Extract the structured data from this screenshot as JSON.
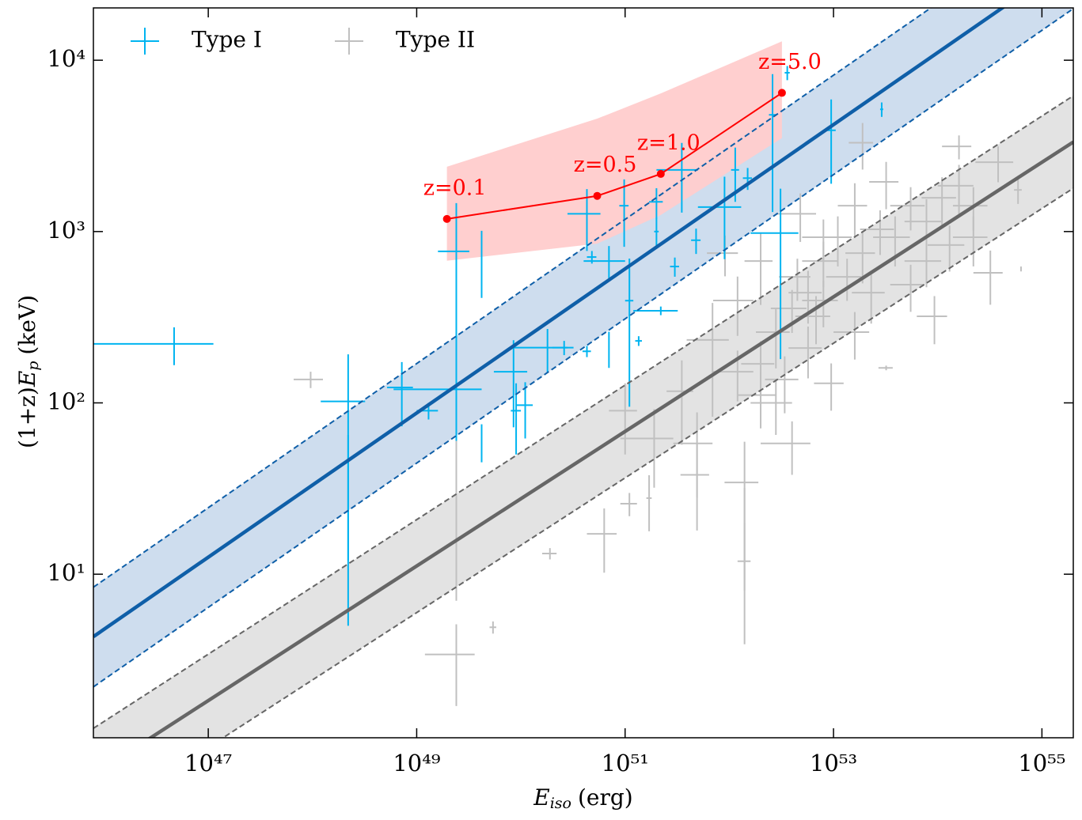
{
  "chart_data": {
    "type": "scatter",
    "xscale": "log",
    "yscale": "log",
    "xlabel": {
      "symbol": "E",
      "subscript": "iso",
      "unit": "(erg)"
    },
    "ylabel": {
      "prefix": "(1+z)",
      "symbol": "E",
      "subscript": "p",
      "unit": "(keV)"
    },
    "xlim": [
      7.9e+45,
      2e+55
    ],
    "ylim": [
      1.11,
      20200
    ],
    "xticks": [
      {
        "value": 1e+47,
        "label": "10⁴⁷"
      },
      {
        "value": 1e+49,
        "label": "10⁴⁹"
      },
      {
        "value": 1e+51,
        "label": "10⁵¹"
      },
      {
        "value": 1e+53,
        "label": "10⁵³"
      },
      {
        "value": 1e+55,
        "label": "10⁵⁵"
      }
    ],
    "yticks": [
      {
        "value": 10,
        "label": "10¹"
      },
      {
        "value": 100,
        "label": "10²"
      },
      {
        "value": 1000,
        "label": "10³"
      },
      {
        "value": 10000,
        "label": "10⁴"
      }
    ],
    "legend": {
      "position": "upper left",
      "columns": 2
    },
    "series": [
      {
        "name": "Type I",
        "color": "#00b4f0",
        "x": [
          4.7e+46,
          2.2e+48,
          2.2e+48,
          7.2e+48,
          1.3e+49,
          2.4e+49,
          2.4e+49,
          4.2e+49,
          4.2e+49,
          8.5e+49,
          9e+49,
          1.1e+50,
          1.8e+50,
          2.6e+50,
          4.3e+50,
          4.3e+50,
          4.8e+50,
          7e+50,
          7e+50,
          9.8e+50,
          1.1e+51,
          1.35e+51,
          2e+51,
          2e+51,
          2.2e+51,
          3e+51,
          3.5e+51,
          4.8e+51,
          9e+51,
          1.14e+52,
          1.5e+52,
          2.6e+52,
          3.1e+52,
          3.6e+52,
          9.5e+52,
          2.9e+53
        ],
        "values": [
          221,
          102,
          35,
          123,
          90,
          766,
          120,
          710,
          60,
          152,
          90,
          97,
          210,
          210,
          200,
          1270,
          710,
          673,
          210,
          1415,
          395,
          230,
          1490,
          1000,
          345,
          625,
          2290,
          890,
          1390,
          2290,
          2050,
          4800,
          980,
          8450,
          3900,
          5170
        ],
        "xerr": [
          6.5e+46,
          1e+48,
          0,
          2e+48,
          3e+48,
          8e+48,
          1.8e+49,
          0,
          0,
          3e+49,
          1e+49,
          2e+49,
          1e+50,
          6e+49,
          4e+49,
          1.5e+50,
          5e+49,
          3e+50,
          0,
          1e+50,
          1e+50,
          1e+50,
          3e+50,
          1e+50,
          1e+51,
          3e+50,
          1.5e+51,
          5e+50,
          4e+51,
          1e+51,
          1.5e+51,
          2e+51,
          1.5e+52,
          2e+51,
          1e+52,
          1e+52
        ],
        "yerr": [
          55,
          90,
          30,
          50,
          10,
          700,
          60,
          300,
          15,
          80,
          40,
          35,
          60,
          20,
          15,
          500,
          60,
          150,
          50,
          600,
          300,
          15,
          300,
          200,
          20,
          80,
          1000,
          150,
          700,
          800,
          300,
          3500,
          800,
          800,
          2000,
          500
        ]
      },
      {
        "name": "Type II",
        "color": "#c0c0c0",
        "x": [
          9.6e+47,
          2.4e+49,
          1.9e+50,
          2.4e+49,
          5.4e+49,
          6.3e+50,
          1.1e+51,
          1.7e+51,
          1e+51,
          4.9e+51,
          4.9e+51,
          1.4e+52,
          1.4e+52,
          6.9e+51,
          1.2e+52,
          2e+52,
          2.8e+52,
          4e+52,
          4.8e+52,
          5.7e+52,
          8e+52,
          1.1e+53,
          1.6e+53,
          1.9e+53,
          2.3e+53,
          3.2e+53,
          3.9e+53,
          5.5e+53,
          7.8e+53,
          1.1e+54,
          1.6e+54,
          2.2e+54,
          3.8e+54,
          5.9e+54,
          3.2e+54,
          1.3e+54,
          5.5e+53,
          1.6e+53,
          3.2e+53,
          9.5e+52,
          6.8e+52,
          3.4e+52,
          2e+52,
          2e+52,
          2.8e+52,
          8e+52,
          4e+52,
          1.35e+53,
          2.8e+53,
          7.8e+53,
          2.2e+54,
          5.7e+52,
          3.5e+51,
          1.9e+51,
          1.2e+52,
          1.4e+52,
          4.5e+52,
          8e+52,
          1.9e+53,
          1.6e+54,
          6.3e+54,
          9.3e+53,
          9.1e+51
        ],
        "values": [
          137,
          97,
          13.2,
          3.4,
          4.9,
          17.2,
          25.8,
          27.8,
          90,
          58,
          38,
          34.3,
          20,
          233,
          396,
          673,
          259,
          58,
          1270,
          440,
          673,
          926,
          1415,
          748,
          440,
          1950,
          926,
          1415,
          1145,
          1575,
          1850,
          926,
          2540,
          1750,
          574,
          834,
          490,
          259,
          160,
          130,
          320,
          137,
          111,
          169,
          100,
          396,
          356,
          544,
          1030,
          673,
          1415,
          209,
          117,
          62,
          152,
          11.9,
          544,
          926,
          3300,
          3140,
          605,
          320,
          748
        ],
        "xerr": [
          3e+47,
          0,
          3e+49,
          1.2e+49,
          4e+48,
          2e+50,
          2e+50,
          1e+50,
          3e+50,
          2e+51,
          1.5e+51,
          5e+51,
          0,
          3e+51,
          5e+51,
          6e+51,
          1e+52,
          2e+52,
          2e+52,
          2e+52,
          3e+52,
          4e+52,
          5e+52,
          6e+52,
          8e+52,
          1e+53,
          1.5e+53,
          2e+53,
          3e+53,
          4e+53,
          6e+53,
          8e+53,
          1.5e+54,
          5e+53,
          1e+54,
          5e+53,
          2e+53,
          6e+52,
          5e+52,
          3e+52,
          2.5e+52,
          1.2e+52,
          8e+51,
          7e+51,
          1.2e+52,
          3e+52,
          1.5e+52,
          5e+52,
          1e+53,
          3e+53,
          8e+53,
          2e+52,
          1e+51,
          1e+51,
          5e+51,
          2e+51,
          1.5e+52,
          3e+52,
          5e+52,
          5e+53,
          1e+53,
          3e+53,
          3e+51
        ],
        "yerr": [
          15,
          90,
          1,
          1.7,
          0.4,
          7,
          4,
          10,
          40,
          30,
          20,
          25,
          12,
          150,
          150,
          300,
          100,
          20,
          400,
          150,
          200,
          300,
          500,
          250,
          150,
          600,
          300,
          400,
          400,
          500,
          600,
          300,
          600,
          300,
          200,
          250,
          150,
          80,
          5,
          40,
          100,
          50,
          40,
          60,
          35,
          120,
          100,
          150,
          300,
          200,
          400,
          70,
          60,
          30,
          50,
          8,
          150,
          250,
          1000,
          500,
          20,
          100,
          200
        ]
      }
    ],
    "fits": [
      {
        "color": "#0f5fa8",
        "band_color": "#c9d9ec",
        "x": [
          7.9e+45,
          2e+55
        ],
        "values": [
          4.32,
          39100
        ],
        "lower": [
          2.2,
          20000
        ],
        "upper": [
          8.4,
          76000
        ]
      },
      {
        "color": "#666666",
        "band_color": "#e0e0e0",
        "x": [
          7.9e+45,
          2e+55
        ],
        "values": [
          0.675,
          3330
        ],
        "lower": [
          0.36,
          1790
        ],
        "upper": [
          1.26,
          6200
        ]
      }
    ],
    "track": {
      "color": "#ff0000",
      "band_color": "#ffcccc",
      "x": [
        1.95e+49,
        5.4e+50,
        2.2e+51,
        3.2e+52
      ],
      "values": [
        1185,
        1615,
        2170,
        6450
      ],
      "upper": [
        2390,
        4560,
        6400,
        12900
      ],
      "lower": [
        675,
        850,
        1250,
        3510
      ],
      "labels": [
        "z=0.1",
        "z=0.5",
        "z=1.0",
        "z=5.0"
      ]
    }
  }
}
